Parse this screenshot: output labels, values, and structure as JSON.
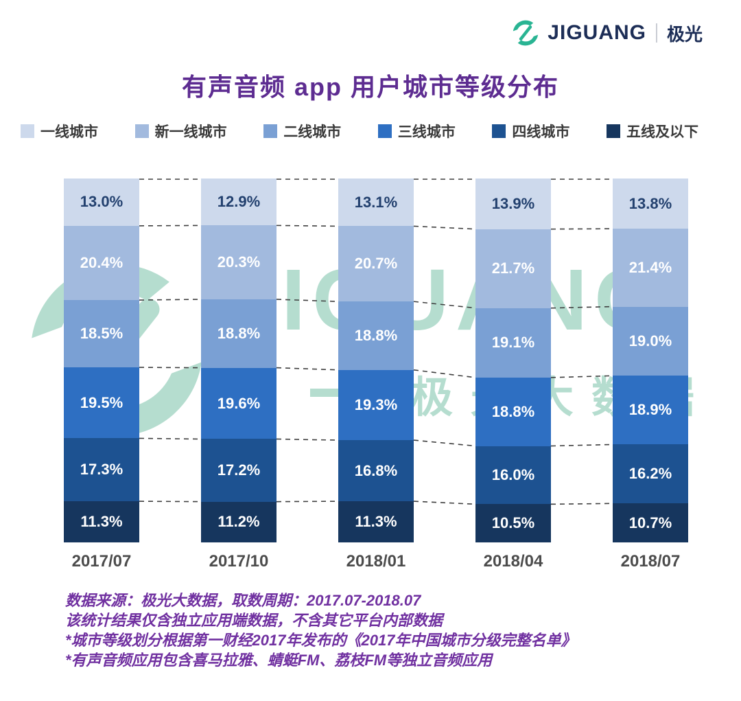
{
  "logo": {
    "brand": "JIGUANG",
    "suffix": "极光"
  },
  "title": "有声音频 app 用户城市等级分布",
  "watermark": {
    "brand": "JIGUANG",
    "sub": "极光大数据"
  },
  "chart_data": {
    "type": "bar",
    "stacked": true,
    "title": "有声音频 app 用户城市等级分布",
    "categories": [
      "2017/07",
      "2017/10",
      "2018/01",
      "2018/04",
      "2018/07"
    ],
    "series": [
      {
        "name": "一线城市",
        "color": "#cdd9ec",
        "label_color": "#22406e",
        "values": [
          13.0,
          12.9,
          13.1,
          13.9,
          13.8
        ]
      },
      {
        "name": "新一线城市",
        "color": "#a2bade",
        "label_color": "#ffffff",
        "values": [
          20.4,
          20.3,
          20.7,
          21.7,
          21.4
        ]
      },
      {
        "name": "二线城市",
        "color": "#7aa0d4",
        "label_color": "#ffffff",
        "values": [
          18.5,
          18.8,
          18.8,
          19.1,
          19.0
        ]
      },
      {
        "name": "三线城市",
        "color": "#2e6fc2",
        "label_color": "#ffffff",
        "values": [
          19.5,
          19.6,
          19.3,
          18.8,
          18.9
        ]
      },
      {
        "name": "四线城市",
        "color": "#1d5291",
        "label_color": "#ffffff",
        "values": [
          17.3,
          17.2,
          16.8,
          16.0,
          16.2
        ]
      },
      {
        "name": "五线及以下",
        "color": "#16365e",
        "label_color": "#ffffff",
        "values": [
          11.3,
          11.2,
          11.3,
          10.5,
          10.7
        ]
      }
    ],
    "value_suffix": "%",
    "ylim": [
      0,
      100
    ],
    "legend_position": "top",
    "grid": false
  },
  "footer": {
    "lines": [
      "数据来源：极光大数据，取数周期：2017.07-2018.07",
      "该统计结果仅含独立应用端数据，不含其它平台内部数据",
      "*城市等级划分根据第一财经2017年发布的《2017年中国城市分级完整名单》",
      "*有声音频应用包含喜马拉雅、蜻蜓FM、荔枝FM等独立音频应用"
    ]
  }
}
